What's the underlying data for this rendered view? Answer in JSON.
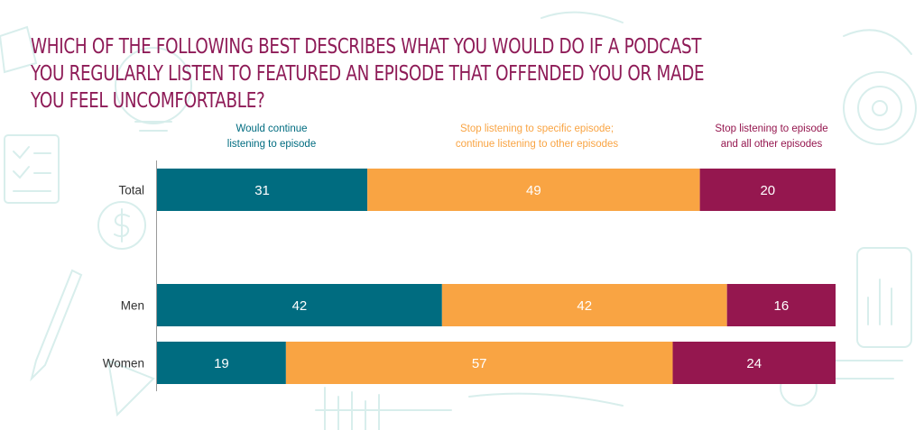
{
  "title": "Which of the following best describes what you would do if a podcast you regularly listen to featured an episode that offended you or made you feel uncomfortable?",
  "colors": {
    "title": "#8e1b57",
    "continue": "#006c80",
    "stop_episode": "#f9a443",
    "stop_all": "#95174f",
    "doodle": "#d8eeec"
  },
  "legend": {
    "continue": {
      "line1": "Would continue",
      "line2": "listening to episode"
    },
    "stop_episode": {
      "line1": "Stop listening to specific episode;",
      "line2": "continue listening to other episodes"
    },
    "stop_all": {
      "line1": "Stop listening to episode",
      "line2": "and all other episodes"
    }
  },
  "chart_data": {
    "type": "bar",
    "orientation": "horizontal",
    "stacked": true,
    "categories": [
      "Total",
      "Men",
      "Women"
    ],
    "series": [
      {
        "name": "Would continue listening to episode",
        "values": [
          31,
          42,
          19
        ]
      },
      {
        "name": "Stop listening to specific episode; continue listening to other episodes",
        "values": [
          49,
          42,
          57
        ]
      },
      {
        "name": "Stop listening to episode and all other episodes",
        "values": [
          20,
          16,
          24
        ]
      }
    ],
    "xlim": [
      0,
      100
    ],
    "grid": false,
    "legend_placement": "top"
  }
}
